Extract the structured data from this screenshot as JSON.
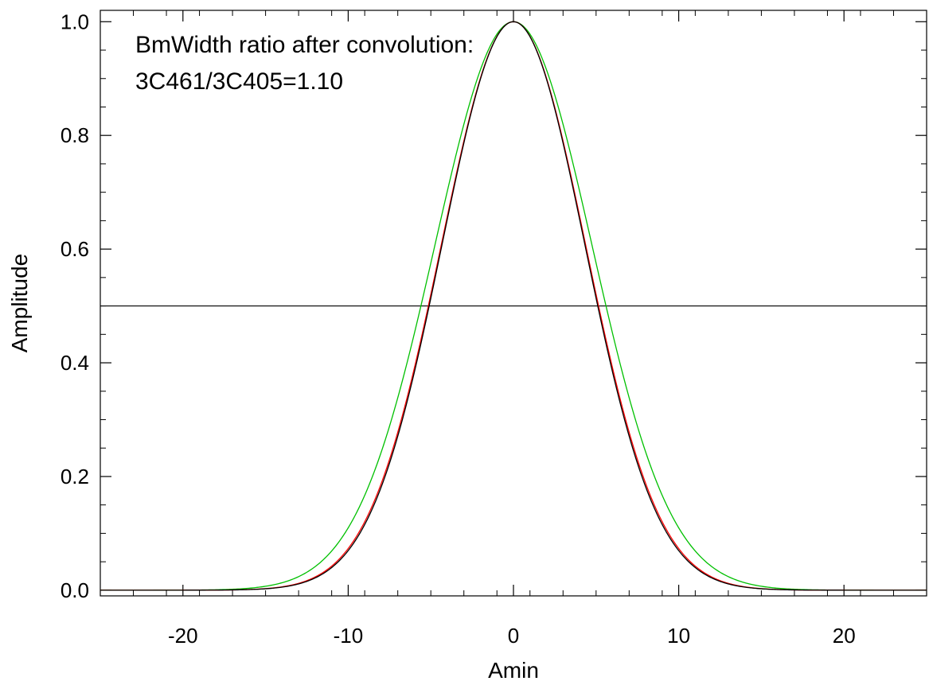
{
  "chart_data": {
    "type": "line",
    "xlabel": "Amin",
    "ylabel": "Amplitude",
    "xlim": [
      -25,
      25
    ],
    "ylim": [
      -0.01,
      1.02
    ],
    "x_ticks": [
      -20,
      -10,
      0,
      10,
      20
    ],
    "x_tick_labels": [
      "-20",
      "-10",
      "0",
      "10",
      "20"
    ],
    "x_minor_step": 2,
    "y_ticks": [
      0.0,
      0.2,
      0.4,
      0.6,
      0.8,
      1.0
    ],
    "y_tick_labels": [
      "0.0",
      "0.2",
      "0.4",
      "0.6",
      "0.8",
      "1.0"
    ],
    "y_minor_step": 0.05,
    "grid": false,
    "annotations": [
      "BmWidth ratio after convolution:",
      "3C461/3C405=1.10"
    ],
    "reference_line": {
      "y": 0.5,
      "color": "#000000"
    },
    "series": [
      {
        "color": "#000000",
        "center": 0,
        "fwhm": 10.2,
        "amplitude": 1.0
      },
      {
        "color": "#ff0000",
        "center": 0,
        "fwhm": 10.3,
        "amplitude": 1.0
      },
      {
        "color": "#00c000",
        "center": 0,
        "fwhm": 11.2,
        "amplitude": 1.0
      }
    ]
  }
}
